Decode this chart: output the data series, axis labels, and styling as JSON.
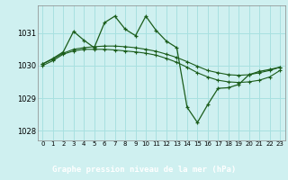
{
  "background_color": "#cff0f0",
  "plot_bg_color": "#cff0f0",
  "label_bg_color": "#2d6e2d",
  "line_color": "#1a5c1a",
  "marker": "+",
  "xlabel": "Graphe pression niveau de la mer (hPa)",
  "ylim": [
    1027.7,
    1031.85
  ],
  "xlim": [
    -0.5,
    23.5
  ],
  "yticks": [
    1028,
    1029,
    1030,
    1031
  ],
  "xticks": [
    0,
    1,
    2,
    3,
    4,
    5,
    6,
    7,
    8,
    9,
    10,
    11,
    12,
    13,
    14,
    15,
    16,
    17,
    18,
    19,
    20,
    21,
    22,
    23
  ],
  "series1": [
    1030.0,
    1030.15,
    1030.35,
    1030.45,
    1030.5,
    1030.5,
    1030.5,
    1030.48,
    1030.45,
    1030.42,
    1030.38,
    1030.32,
    1030.22,
    1030.1,
    1029.95,
    1029.78,
    1029.65,
    1029.55,
    1029.5,
    1029.48,
    1029.5,
    1029.55,
    1029.65,
    1029.85
  ],
  "series2": [
    1030.05,
    1030.2,
    1030.38,
    1030.5,
    1030.55,
    1030.58,
    1030.6,
    1030.6,
    1030.58,
    1030.55,
    1030.5,
    1030.44,
    1030.35,
    1030.25,
    1030.12,
    1029.98,
    1029.85,
    1029.78,
    1029.72,
    1029.7,
    1029.72,
    1029.78,
    1029.85,
    1029.95
  ],
  "series3": [
    1030.05,
    1030.22,
    1030.42,
    1031.05,
    1030.78,
    1030.55,
    1031.32,
    1031.52,
    1031.12,
    1030.92,
    1031.52,
    1031.08,
    1030.75,
    1030.55,
    1028.72,
    1028.25,
    1028.8,
    1029.3,
    1029.32,
    1029.42,
    1029.72,
    1029.82,
    1029.88,
    1029.95
  ]
}
